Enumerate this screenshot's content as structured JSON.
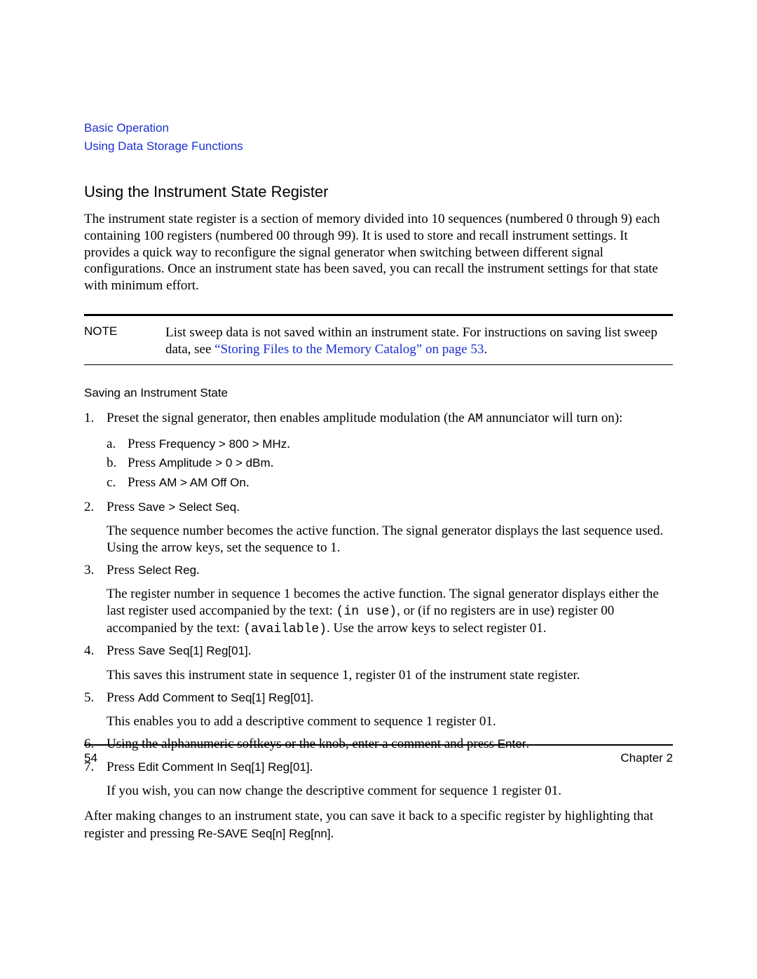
{
  "colors": {
    "link": "#1a2fcf",
    "text": "#000000",
    "background": "#ffffff"
  },
  "typography": {
    "body_family": "Times New Roman",
    "body_size_pt": 14,
    "sans_family": "Arial",
    "sans_size_pt": 13,
    "mono_family": "Courier New"
  },
  "header": {
    "line1": "Basic Operation",
    "line2": "Using Data Storage Functions"
  },
  "section_title": "Using the Instrument State Register",
  "intro": "The instrument state register is a section of memory divided into 10 sequences (numbered 0 through 9) each containing 100 registers (numbered 00 through 99). It is used to store and recall instrument settings. It provides a quick way to reconfigure the signal generator when switching between different signal configurations. Once an instrument state has been saved, you can recall the instrument settings for that state with minimum effort.",
  "note": {
    "label": "NOTE",
    "text_before": "List sweep data is not saved within an instrument state. For instructions on saving list sweep data, see ",
    "xref": "“Storing Files to the Memory Catalog” on page 53",
    "text_after": "."
  },
  "subhead": "Saving an Instrument State",
  "steps": {
    "s1": {
      "pre": "Preset the signal generator, then enables amplitude modulation (the ",
      "mono": "AM",
      "post": " annunciator will turn on):",
      "a": {
        "pre": "Press ",
        "sans": "Frequency > 800 > MHz",
        "post": "."
      },
      "b": {
        "pre": "Press ",
        "sans": "Amplitude > 0 > dBm",
        "post": "."
      },
      "c": {
        "pre": "Press ",
        "sans": "AM > AM Off On",
        "post": "."
      }
    },
    "s2": {
      "pre": "Press ",
      "sans": "Save > Select Seq",
      "post": ".",
      "para": "The sequence number becomes the active function. The signal generator displays the last sequence used. Using the arrow keys, set the sequence to 1."
    },
    "s3": {
      "pre": "Press ",
      "sans": "Select Reg",
      "post": ".",
      "para_pre": "The register number in sequence 1 becomes the active function. The signal generator displays either the last register used accompanied by the text: ",
      "mono1": "(in use)",
      "para_mid": ", or (if no registers are in use) register 00 accompanied by the text: ",
      "mono2": "(available)",
      "para_post": ". Use the arrow keys to select register 01."
    },
    "s4": {
      "pre": "Press ",
      "sans": "Save Seq[1] Reg[01]",
      "post": ".",
      "para": "This saves this instrument state in sequence 1, register 01 of the instrument state register."
    },
    "s5": {
      "pre": "Press ",
      "sans": "Add Comment to Seq[1] Reg[01]",
      "post": ".",
      "para": "This enables you to add a descriptive comment to sequence 1 register 01."
    },
    "s6": {
      "pre": "Using the alphanumeric softkeys or the knob, enter a comment and press ",
      "sans": "Enter",
      "post": "."
    },
    "s7": {
      "pre": "Press ",
      "sans": "Edit Comment In Seq[1] Reg[01]",
      "post": ".",
      "para": "If you wish, you can now change the descriptive comment for sequence 1 register 01."
    }
  },
  "closing": {
    "pre": "After making changes to an instrument state, you can save it back to a specific register by highlighting that register and pressing ",
    "sans": "Re-SAVE Seq[n] Reg[nn]",
    "post": "."
  },
  "footer": {
    "page": "54",
    "chapter": "Chapter 2"
  }
}
